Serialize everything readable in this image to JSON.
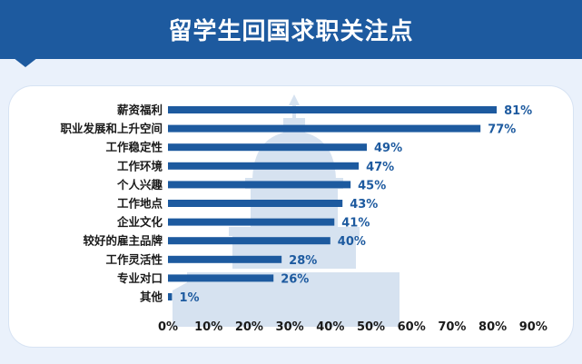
{
  "page": {
    "title": "留学生回国求职关注点"
  },
  "colors": {
    "banner": "#1d5a9f",
    "bar": "#1d5a9f",
    "value_label": "#1d5a9f",
    "background": "#eaf1fb"
  },
  "chart_data": {
    "type": "bar",
    "orientation": "horizontal",
    "categories": [
      "薪资福利",
      "职业发展和上升空间",
      "工作稳定性",
      "工作环境",
      "个人兴趣",
      "工作地点",
      "企业文化",
      "较好的雇主品牌",
      "工作灵活性",
      "专业对口",
      "其他"
    ],
    "values": [
      81,
      77,
      49,
      47,
      45,
      43,
      41,
      40,
      28,
      26,
      1
    ],
    "value_labels": [
      "81%",
      "77%",
      "49%",
      "47%",
      "45%",
      "43%",
      "41%",
      "40%",
      "28%",
      "26%",
      "1%"
    ],
    "xlim": [
      0,
      90
    ],
    "xticks": [
      "0%",
      "10%",
      "20%",
      "30%",
      "40%",
      "50%",
      "60%",
      "70%",
      "80%",
      "90%"
    ],
    "grid": false,
    "legend": "none"
  }
}
